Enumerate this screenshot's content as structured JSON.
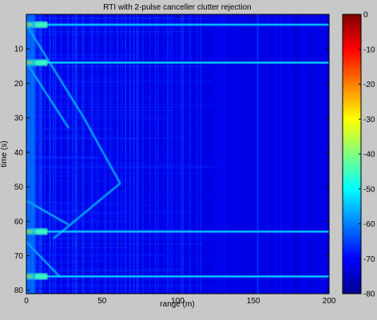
{
  "chart_data": {
    "type": "heatmap",
    "title": "RTI with 2-pulse canceller clutter rejection",
    "xlabel": "range (m)",
    "ylabel": "time (s)",
    "xlim": [
      0,
      200
    ],
    "ylim": [
      0,
      81
    ],
    "y_direction": "downward",
    "x_ticks": [
      "0",
      "50",
      "100",
      "150",
      "200"
    ],
    "y_ticks": [
      "10",
      "20",
      "30",
      "40",
      "50",
      "60",
      "70",
      "80"
    ],
    "colorbar": {
      "colormap": "jet",
      "range": [
        -80,
        0
      ],
      "ticks": [
        "0",
        "-10",
        "-20",
        "-30",
        "-40",
        "-50",
        "-60",
        "-70",
        "-80"
      ]
    },
    "background_level_db": -72,
    "bright_time_bands_s": [
      3,
      14,
      63,
      76
    ],
    "diagonal_tracks": [
      {
        "from": [
          0,
          3
        ],
        "to": [
          38,
          30
        ]
      },
      {
        "from": [
          0,
          14
        ],
        "to": [
          28,
          33
        ]
      },
      {
        "from": [
          38,
          30
        ],
        "to": [
          62,
          49
        ]
      },
      {
        "from": [
          62,
          49
        ],
        "to": [
          18,
          65
        ]
      },
      {
        "from": [
          0,
          54
        ],
        "to": [
          28,
          61
        ]
      },
      {
        "from": [
          0,
          66
        ],
        "to": [
          22,
          76
        ]
      }
    ]
  }
}
